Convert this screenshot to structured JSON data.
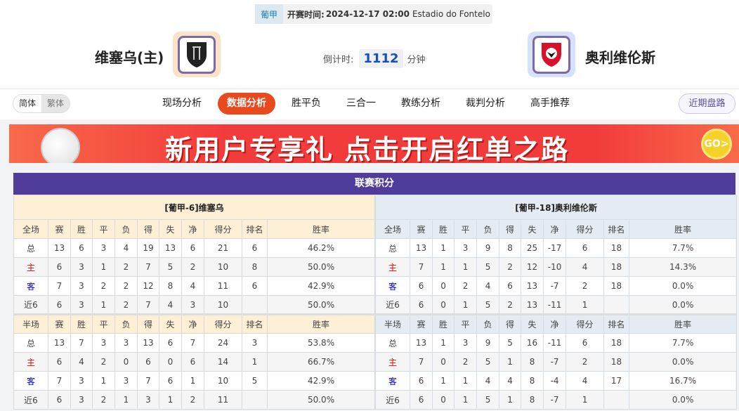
{
  "match": {
    "league": "葡甲",
    "time_label": "开赛时间:",
    "time": "2024-12-17 02:00",
    "venue": "Estadio do Fontelo",
    "home_team": "维塞乌(主)",
    "away_team": "奥利维伦斯",
    "countdown_label": "倒计时:",
    "countdown": "1112",
    "countdown_unit": "分钟"
  },
  "nav": {
    "lang": [
      "简体",
      "繁体"
    ],
    "tabs": [
      "现场分析",
      "数据分析",
      "胜平负",
      "三合一",
      "教练分析",
      "裁判分析",
      "高手推荐"
    ],
    "active": "数据分析",
    "recent": "近期盘路"
  },
  "banner": {
    "text": "新用户专享礼  点击开启红单之路",
    "go": "GO>"
  },
  "standings": {
    "title": "联赛积分",
    "columns_full": [
      "全场",
      "赛",
      "胜",
      "平",
      "负",
      "得",
      "失",
      "净",
      "得分",
      "排名",
      "胜率"
    ],
    "columns_half": [
      "半场",
      "赛",
      "胜",
      "平",
      "负",
      "得",
      "失",
      "净",
      "得分",
      "排名",
      "胜率"
    ],
    "home": {
      "header": "[葡甲-6]维塞乌",
      "full": [
        [
          "总",
          "13",
          "6",
          "3",
          "4",
          "19",
          "13",
          "6",
          "21",
          "6",
          "46.2%"
        ],
        [
          "主",
          "6",
          "3",
          "1",
          "2",
          "7",
          "5",
          "2",
          "10",
          "8",
          "50.0%"
        ],
        [
          "客",
          "7",
          "3",
          "2",
          "2",
          "12",
          "8",
          "4",
          "11",
          "6",
          "42.9%"
        ],
        [
          "近6",
          "6",
          "3",
          "1",
          "2",
          "7",
          "4",
          "3",
          "10",
          "",
          "50.0%"
        ]
      ],
      "half": [
        [
          "总",
          "13",
          "7",
          "3",
          "3",
          "13",
          "6",
          "7",
          "24",
          "3",
          "53.8%"
        ],
        [
          "主",
          "6",
          "4",
          "2",
          "0",
          "6",
          "0",
          "6",
          "14",
          "1",
          "66.7%"
        ],
        [
          "客",
          "7",
          "3",
          "1",
          "3",
          "7",
          "6",
          "1",
          "10",
          "5",
          "42.9%"
        ],
        [
          "近6",
          "6",
          "3",
          "2",
          "1",
          "3",
          "1",
          "2",
          "11",
          "",
          "50.0%"
        ]
      ]
    },
    "away": {
      "header": "[葡甲-18]奥利维伦斯",
      "full": [
        [
          "总",
          "13",
          "1",
          "3",
          "9",
          "8",
          "25",
          "-17",
          "6",
          "18",
          "7.7%"
        ],
        [
          "主",
          "7",
          "1",
          "1",
          "5",
          "2",
          "12",
          "-10",
          "4",
          "18",
          "14.3%"
        ],
        [
          "客",
          "6",
          "0",
          "2",
          "4",
          "6",
          "13",
          "-7",
          "2",
          "18",
          "0.0%"
        ],
        [
          "近6",
          "6",
          "0",
          "1",
          "5",
          "2",
          "13",
          "-11",
          "1",
          "",
          "0.0%"
        ]
      ],
      "half": [
        [
          "总",
          "13",
          "1",
          "3",
          "9",
          "5",
          "16",
          "-11",
          "6",
          "18",
          "7.7%"
        ],
        [
          "主",
          "7",
          "0",
          "2",
          "5",
          "1",
          "8",
          "-7",
          "2",
          "18",
          "0.0%"
        ],
        [
          "客",
          "6",
          "1",
          "1",
          "4",
          "4",
          "8",
          "-4",
          "4",
          "17",
          "16.7%"
        ],
        [
          "近6",
          "6",
          "0",
          "1",
          "5",
          "1",
          "8",
          "-7",
          "1",
          "",
          "0.0%"
        ]
      ]
    }
  }
}
